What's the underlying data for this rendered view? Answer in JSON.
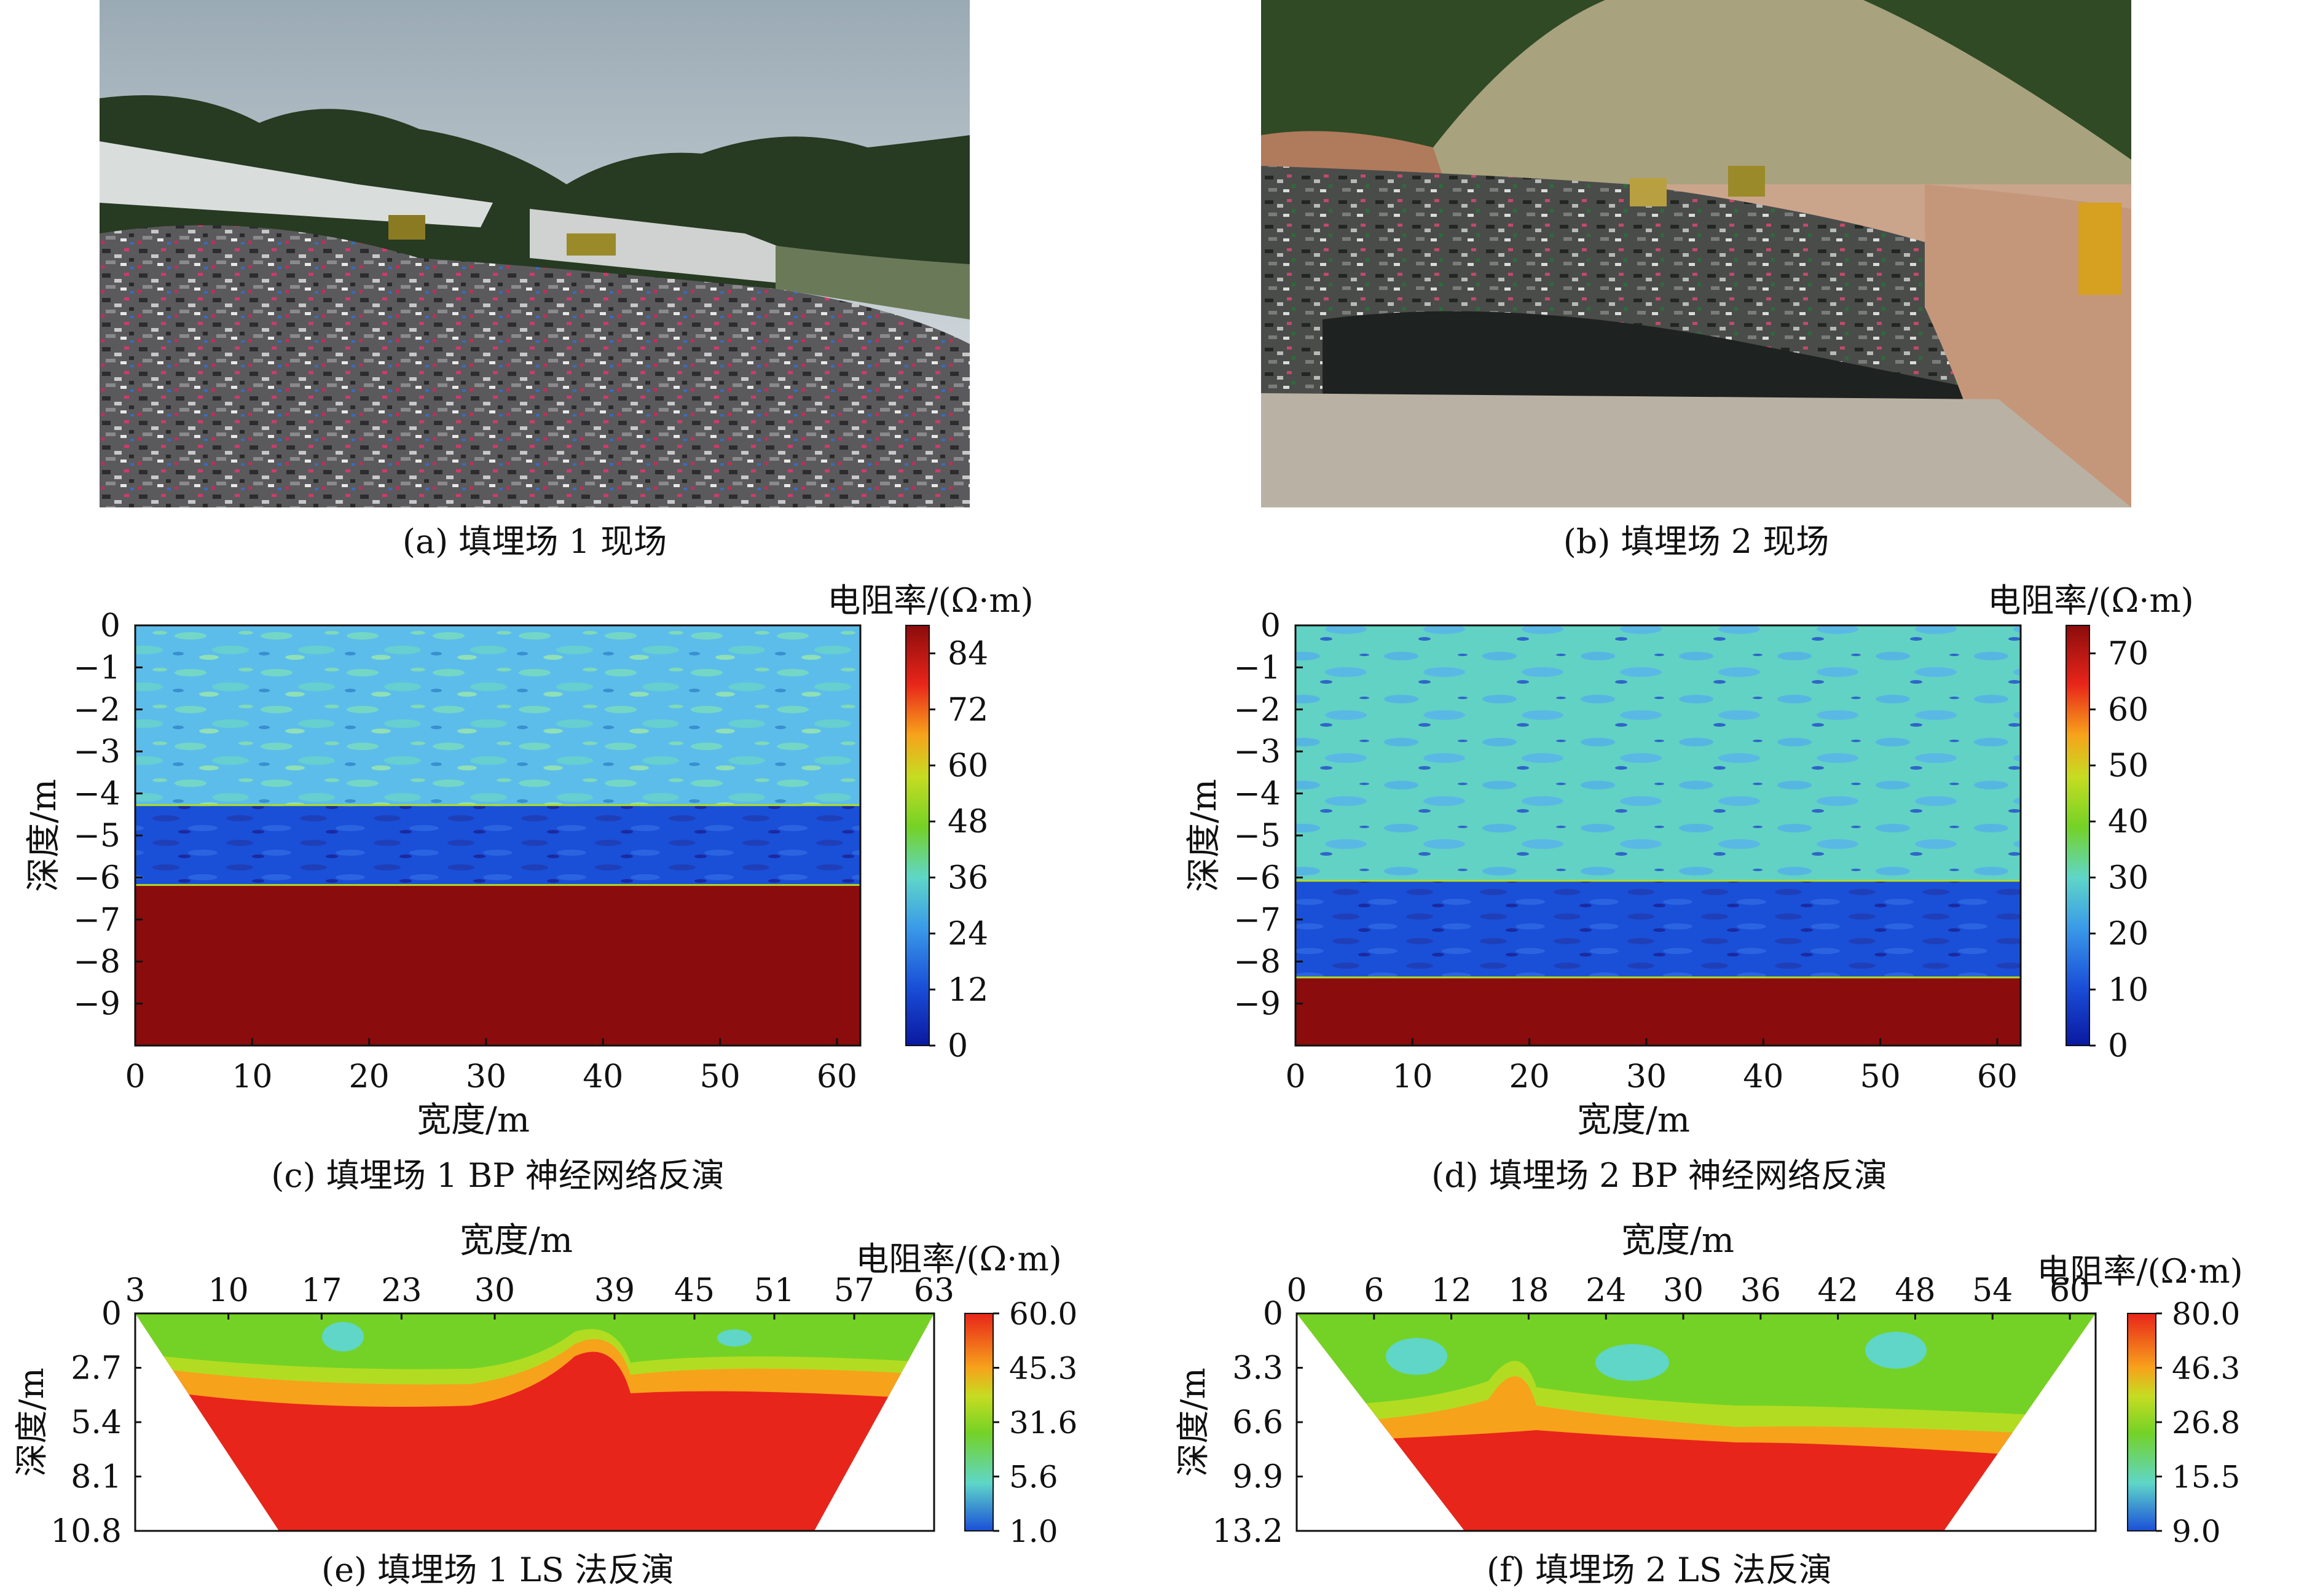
{
  "figure": {
    "panels": [
      {
        "id": "a",
        "caption": "(a) 填埋场 1 现场",
        "kind": "photo"
      },
      {
        "id": "b",
        "caption": "(b) 填埋场 2 现场",
        "kind": "photo"
      },
      {
        "id": "c",
        "caption": "(c) 填埋场 1 BP 神经网络反演",
        "kind": "chart"
      },
      {
        "id": "d",
        "caption": "(d) 填埋场 2 BP 神经网络反演",
        "kind": "chart"
      },
      {
        "id": "e",
        "caption": "(e) 填埋场 1 LS 法反演",
        "kind": "chart"
      },
      {
        "id": "f",
        "caption": "(f) 填埋场 2 LS 法反演",
        "kind": "chart"
      }
    ]
  },
  "colors": {
    "dark_red": "#8b0c0c",
    "red": "#e8251a",
    "orange": "#f7a21b",
    "yellow_green": "#b2dc22",
    "green": "#74d226",
    "cyan": "#5fd6c8",
    "light_blue": "#5dbdea",
    "blue": "#1a4fd8",
    "navy": "#1a2aa0"
  },
  "chart_data": [
    {
      "panel": "c",
      "type": "heatmap",
      "xlabel": "宽度/m",
      "ylabel": "深度/m",
      "colorbar_label": "电阻率/(Ω·m)",
      "xlim": [
        0,
        62
      ],
      "ylim": [
        -10,
        0
      ],
      "x_ticks": [
        "0",
        "10",
        "20",
        "30",
        "40",
        "50",
        "60"
      ],
      "y_ticks": [
        "0",
        "−1",
        "−2",
        "−3",
        "−4",
        "−5",
        "−6",
        "−7",
        "−8",
        "−9"
      ],
      "colorbar_ticks": [
        "84",
        "72",
        "60",
        "48",
        "36",
        "24",
        "12",
        "0"
      ],
      "colorbar_range": [
        0,
        90
      ],
      "layers": [
        {
          "from_depth": 0,
          "to_depth": -4.3,
          "resistivity_range": [
            24,
            36
          ]
        },
        {
          "from_depth": -4.3,
          "to_depth": -6.2,
          "resistivity_range": [
            0,
            12
          ]
        },
        {
          "from_depth": -6.2,
          "to_depth": -10,
          "resistivity_range": [
            84,
            90
          ]
        }
      ]
    },
    {
      "panel": "d",
      "type": "heatmap",
      "xlabel": "宽度/m",
      "ylabel": "深度/m",
      "colorbar_label": "电阻率/(Ω·m)",
      "xlim": [
        0,
        62
      ],
      "ylim": [
        -10,
        0
      ],
      "x_ticks": [
        "0",
        "10",
        "20",
        "30",
        "40",
        "50",
        "60"
      ],
      "y_ticks": [
        "0",
        "−1",
        "−2",
        "−3",
        "−4",
        "−5",
        "−6",
        "−7",
        "−8",
        "−9"
      ],
      "colorbar_ticks": [
        "70",
        "60",
        "50",
        "40",
        "30",
        "20",
        "10",
        "0"
      ],
      "colorbar_range": [
        0,
        75
      ],
      "layers": [
        {
          "from_depth": 0,
          "to_depth": -6.1,
          "resistivity_range": [
            20,
            30
          ]
        },
        {
          "from_depth": -6.1,
          "to_depth": -8.4,
          "resistivity_range": [
            0,
            10
          ]
        },
        {
          "from_depth": -8.4,
          "to_depth": -10,
          "resistivity_range": [
            70,
            75
          ]
        }
      ]
    },
    {
      "panel": "e",
      "type": "heatmap",
      "xlabel": "宽度/m",
      "ylabel": "深度/m",
      "colorbar_label": "电阻率/(Ω·m)",
      "x_ticks": [
        "3",
        "10",
        "17",
        "23",
        "30",
        "39",
        "45",
        "51",
        "57",
        "63"
      ],
      "y_ticks": [
        "0",
        "2.7",
        "5.4",
        "8.1",
        "10.8"
      ],
      "colorbar_ticks": [
        "60.0",
        "45.3",
        "31.6",
        "5.6",
        "1.0"
      ],
      "xlim": [
        3,
        63
      ],
      "ylim": [
        10.8,
        0
      ]
    },
    {
      "panel": "f",
      "type": "heatmap",
      "xlabel": "宽度/m",
      "ylabel": "深度/m",
      "colorbar_label": "电阻率/(Ω·m)",
      "x_ticks": [
        "0",
        "6",
        "12",
        "18",
        "24",
        "30",
        "36",
        "42",
        "48",
        "54",
        "60"
      ],
      "y_ticks": [
        "0",
        "3.3",
        "6.6",
        "9.9",
        "13.2"
      ],
      "colorbar_ticks": [
        "80.0",
        "46.3",
        "26.8",
        "15.5",
        "9.0"
      ],
      "xlim": [
        0,
        62
      ],
      "ylim": [
        13.2,
        0
      ]
    }
  ]
}
